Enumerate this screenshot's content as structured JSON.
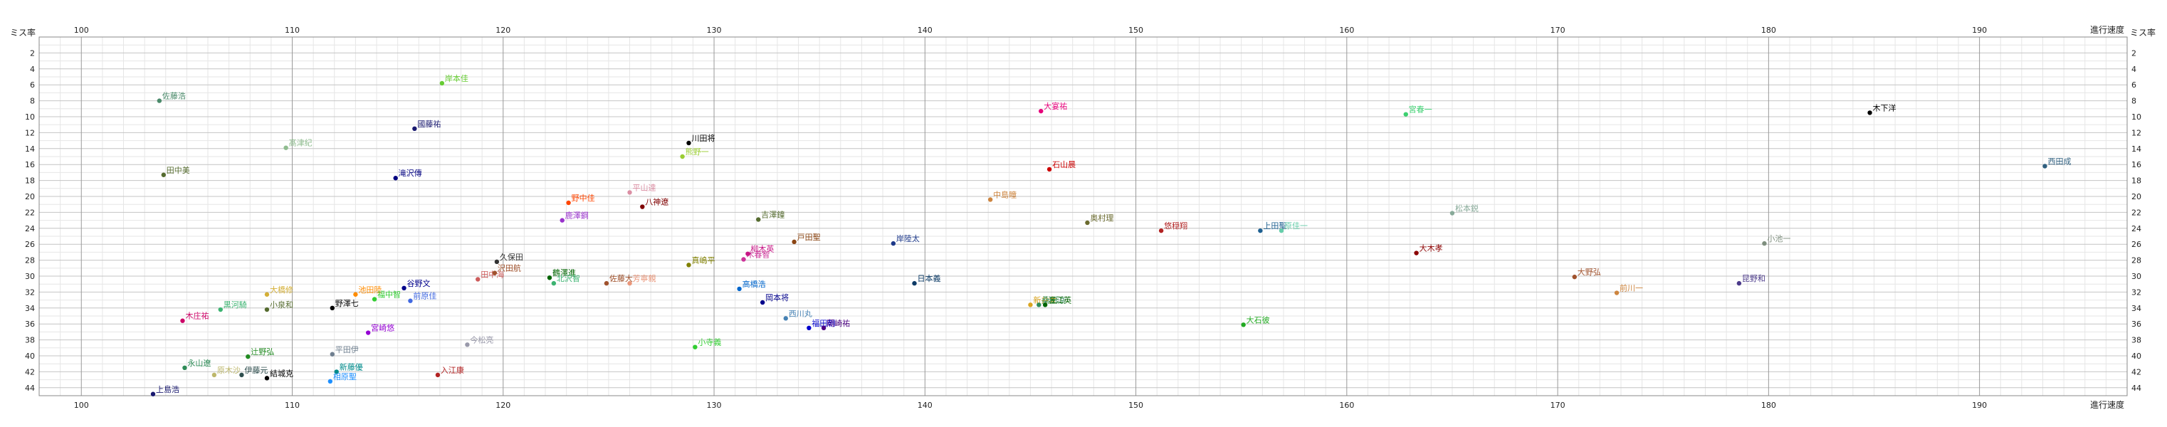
{
  "chart_data": {
    "type": "scatter",
    "title": "",
    "xlabel": "進行速度",
    "ylabel": "ミス率",
    "xlim": [
      98,
      197
    ],
    "ylim": [
      0,
      45
    ],
    "x_ticks": [
      100,
      110,
      120,
      130,
      140,
      150,
      160,
      170,
      180,
      190
    ],
    "y_ticks": [
      2,
      4,
      6,
      8,
      10,
      12,
      14,
      16,
      18,
      20,
      22,
      24,
      26,
      28,
      30,
      32,
      34,
      36,
      38,
      40,
      42,
      44
    ],
    "grid": true,
    "legend": "none",
    "points": [
      {
        "label": "佐藤浩",
        "x": 103.7,
        "y": 8.0,
        "color": "#4a8a6a"
      },
      {
        "label": "田中美",
        "x": 103.9,
        "y": 17.3,
        "color": "#556b2f"
      },
      {
        "label": "上島浩",
        "x": 103.4,
        "y": 44.8,
        "color": "#191970"
      },
      {
        "label": "木庄祐",
        "x": 104.8,
        "y": 35.6,
        "color": "#cc0066"
      },
      {
        "label": "永山遼",
        "x": 104.9,
        "y": 41.5,
        "color": "#2e8b57"
      },
      {
        "label": "黒河騎",
        "x": 106.6,
        "y": 34.2,
        "color": "#3cb371"
      },
      {
        "label": "原木沙",
        "x": 106.3,
        "y": 42.4,
        "color": "#bdb76b"
      },
      {
        "label": "伊藤元",
        "x": 107.6,
        "y": 42.4,
        "color": "#2f4f4f"
      },
      {
        "label": "辻野弘",
        "x": 107.9,
        "y": 40.1,
        "color": "#228b22"
      },
      {
        "label": "結城克",
        "x": 108.8,
        "y": 42.8,
        "color": "#000000"
      },
      {
        "label": "大橋修",
        "x": 108.8,
        "y": 32.3,
        "color": "#d4af37"
      },
      {
        "label": "小泉和",
        "x": 108.8,
        "y": 34.2,
        "color": "#556b2f"
      },
      {
        "label": "髙津紀",
        "x": 109.7,
        "y": 13.9,
        "color": "#8fbc8f"
      },
      {
        "label": "野澤七",
        "x": 111.9,
        "y": 34.0,
        "color": "#000000"
      },
      {
        "label": "平田伊",
        "x": 111.9,
        "y": 39.8,
        "color": "#708090"
      },
      {
        "label": "新藤優",
        "x": 112.1,
        "y": 42.0,
        "color": "#008b8b"
      },
      {
        "label": "相原聖",
        "x": 111.8,
        "y": 43.2,
        "color": "#1e90ff"
      },
      {
        "label": "宮崎悠",
        "x": 113.6,
        "y": 37.1,
        "color": "#9400d3"
      },
      {
        "label": "池田陸",
        "x": 113.0,
        "y": 32.3,
        "color": "#ff8c00"
      },
      {
        "label": "福中智",
        "x": 113.9,
        "y": 32.9,
        "color": "#32cd32"
      },
      {
        "label": "谷野文",
        "x": 115.3,
        "y": 31.5,
        "color": "#00008b"
      },
      {
        "label": "前原佳",
        "x": 115.6,
        "y": 33.1,
        "color": "#4169e1"
      },
      {
        "label": "國藤祐",
        "x": 115.8,
        "y": 11.5,
        "color": "#191970"
      },
      {
        "label": "滝沢傳",
        "x": 114.9,
        "y": 17.7,
        "color": "#000080"
      },
      {
        "label": "岸本佳",
        "x": 117.1,
        "y": 5.8,
        "color": "#66cc33"
      },
      {
        "label": "入江康",
        "x": 116.9,
        "y": 42.4,
        "color": "#b22222"
      },
      {
        "label": "今松亮",
        "x": 118.3,
        "y": 38.6,
        "color": "#9999aa"
      },
      {
        "label": "田中海",
        "x": 118.8,
        "y": 30.4,
        "color": "#cd5c5c"
      },
      {
        "label": "沢田航",
        "x": 119.6,
        "y": 29.6,
        "color": "#a0522d"
      },
      {
        "label": "久保田",
        "x": 119.7,
        "y": 28.2,
        "color": "#333333"
      },
      {
        "label": "鶴澤進",
        "x": 122.2,
        "y": 30.2,
        "color": "#006400"
      },
      {
        "label": "北沢智",
        "x": 122.4,
        "y": 30.9,
        "color": "#3cb371"
      },
      {
        "label": "鹿澤鋼",
        "x": 122.8,
        "y": 23.0,
        "color": "#9932cc"
      },
      {
        "label": "野中佳",
        "x": 123.1,
        "y": 20.8,
        "color": "#ff4500"
      },
      {
        "label": "佐藤大",
        "x": 124.9,
        "y": 30.9,
        "color": "#a0522d"
      },
      {
        "label": "芳寧親",
        "x": 126.0,
        "y": 30.9,
        "color": "#e9967a"
      },
      {
        "label": "平山達",
        "x": 126.0,
        "y": 19.5,
        "color": "#db8fa4"
      },
      {
        "label": "八神遼",
        "x": 126.6,
        "y": 21.3,
        "color": "#800000"
      },
      {
        "label": "川田将",
        "x": 128.8,
        "y": 13.3,
        "color": "#000000"
      },
      {
        "label": "熊野一",
        "x": 128.5,
        "y": 15.0,
        "color": "#9acd32"
      },
      {
        "label": "真嶋平",
        "x": 128.8,
        "y": 28.6,
        "color": "#808000"
      },
      {
        "label": "小寺義",
        "x": 129.1,
        "y": 38.9,
        "color": "#32cd32"
      },
      {
        "label": "高橋浩",
        "x": 131.2,
        "y": 31.6,
        "color": "#0066cc"
      },
      {
        "label": "木春智",
        "x": 131.4,
        "y": 27.9,
        "color": "#cc3399"
      },
      {
        "label": "柳木英",
        "x": 131.6,
        "y": 27.2,
        "color": "#c71585"
      },
      {
        "label": "吉澤鐘",
        "x": 132.1,
        "y": 22.9,
        "color": "#556b2f"
      },
      {
        "label": "岡本将",
        "x": 132.3,
        "y": 33.3,
        "color": "#00008b"
      },
      {
        "label": "西川丸",
        "x": 133.4,
        "y": 35.3,
        "color": "#4682b4"
      },
      {
        "label": "戸田聖",
        "x": 133.8,
        "y": 25.7,
        "color": "#8b4513"
      },
      {
        "label": "福田朝",
        "x": 134.5,
        "y": 36.5,
        "color": "#0000cd"
      },
      {
        "label": "岡崎祐",
        "x": 135.2,
        "y": 36.5,
        "color": "#4b0082"
      },
      {
        "label": "岸陸太",
        "x": 138.5,
        "y": 25.9,
        "color": "#1e3a8a"
      },
      {
        "label": "日本義",
        "x": 139.5,
        "y": 30.9,
        "color": "#0d3b66"
      },
      {
        "label": "中島瞳",
        "x": 143.1,
        "y": 20.4,
        "color": "#cd853f"
      },
      {
        "label": "大宴祐",
        "x": 145.5,
        "y": 9.3,
        "color": "#e6007a"
      },
      {
        "label": "石山晨",
        "x": 145.9,
        "y": 16.6,
        "color": "#cc0000"
      },
      {
        "label": "新井太",
        "x": 145.0,
        "y": 33.6,
        "color": "#daa520"
      },
      {
        "label": "桑田涼",
        "x": 145.4,
        "y": 33.6,
        "color": "#2e8b57"
      },
      {
        "label": "渥江英",
        "x": 145.7,
        "y": 33.6,
        "color": "#006400"
      },
      {
        "label": "奥村理",
        "x": 147.7,
        "y": 23.3,
        "color": "#6b6b2f"
      },
      {
        "label": "悠穏翔",
        "x": 151.2,
        "y": 24.3,
        "color": "#b22222"
      },
      {
        "label": "大石彼",
        "x": 155.1,
        "y": 36.1,
        "color": "#22aa22"
      },
      {
        "label": "上田聖",
        "x": 155.9,
        "y": 24.3,
        "color": "#1e6091"
      },
      {
        "label": "原佳一",
        "x": 156.9,
        "y": 24.3,
        "color": "#66cdaa"
      },
      {
        "label": "宮春一",
        "x": 162.8,
        "y": 9.7,
        "color": "#3cd070"
      },
      {
        "label": "大木孝",
        "x": 163.3,
        "y": 27.1,
        "color": "#8b0000"
      },
      {
        "label": "松本鋭",
        "x": 165.0,
        "y": 22.1,
        "color": "#88aa99"
      },
      {
        "label": "大野弘",
        "x": 170.8,
        "y": 30.1,
        "color": "#a0522d"
      },
      {
        "label": "前川一",
        "x": 172.8,
        "y": 32.1,
        "color": "#cd853f"
      },
      {
        "label": "昆野和",
        "x": 178.6,
        "y": 30.9,
        "color": "#4b3a8a"
      },
      {
        "label": "小池一",
        "x": 179.8,
        "y": 25.9,
        "color": "#7f8f7f"
      },
      {
        "label": "木下洋",
        "x": 184.8,
        "y": 9.5,
        "color": "#000000"
      },
      {
        "label": "西田成",
        "x": 193.1,
        "y": 16.2,
        "color": "#2f5f7f"
      }
    ]
  }
}
